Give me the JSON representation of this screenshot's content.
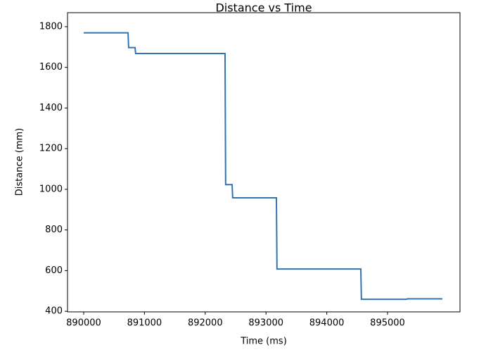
{
  "chart_data": {
    "type": "line",
    "title": "Distance vs Time",
    "xlabel": "Time (ms)",
    "ylabel": "Distance (mm)",
    "series": [
      {
        "name": "Distance",
        "color": "#3274b0",
        "x": [
          890000,
          890730,
          890740,
          890845,
          890855,
          892326,
          892336,
          892442,
          892452,
          893171,
          893181,
          894560,
          894570,
          895313,
          895323,
          895903
        ],
        "values": [
          1770,
          1770,
          1697,
          1697,
          1668,
          1668,
          1023,
          1023,
          958,
          958,
          608,
          608,
          459,
          459,
          461,
          461
        ]
      }
    ],
    "xlim": [
      889734,
      896192
    ],
    "xticks": [
      890000,
      891000,
      892000,
      893000,
      894000,
      895000
    ],
    "ylim": [
      397,
      1869
    ],
    "yticks": [
      400,
      600,
      800,
      1000,
      1200,
      1400,
      1600,
      1800
    ]
  }
}
